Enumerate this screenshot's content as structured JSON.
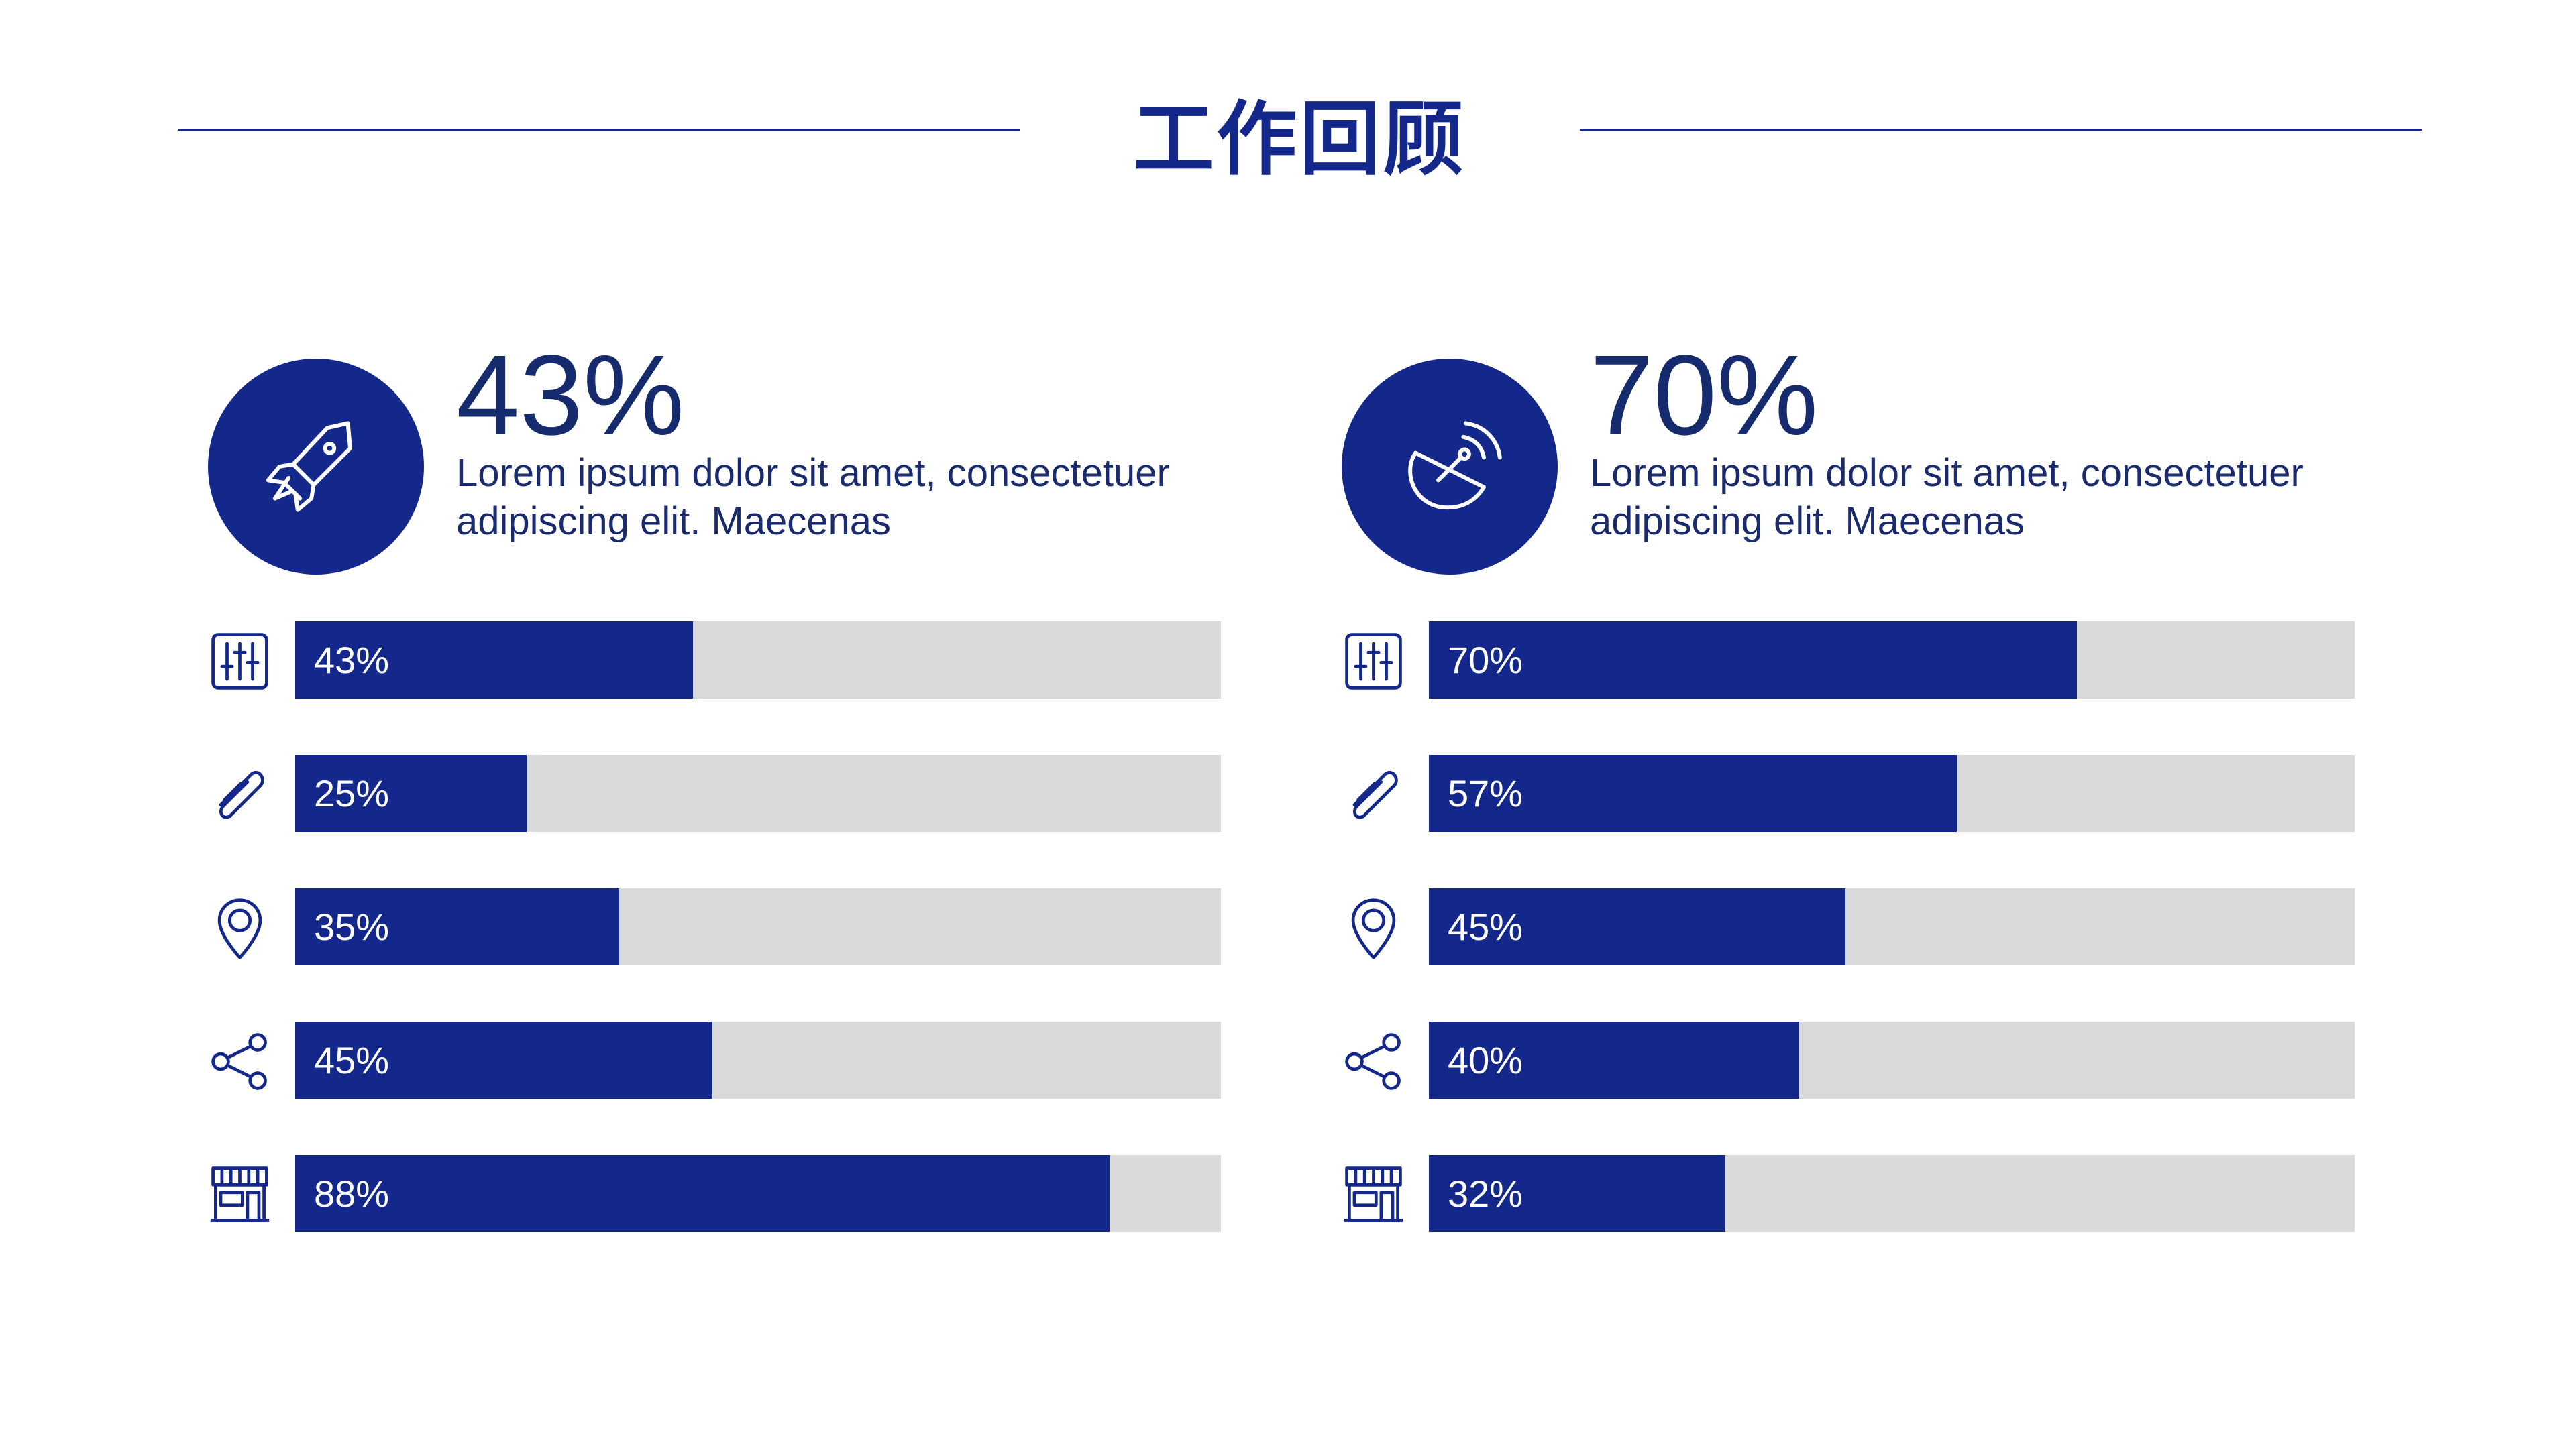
{
  "header": {
    "title": "工作回顾"
  },
  "panels": [
    {
      "icon": "rocket-icon",
      "big_value": "43%",
      "description_line1": "Lorem ipsum dolor sit amet, consectetuer",
      "description_line2": "adipiscing elit. Maecenas"
    },
    {
      "icon": "satellite-dish-icon",
      "big_value": "70%",
      "description_line1": "Lorem ipsum dolor sit amet, consectetuer",
      "description_line2": "adipiscing elit. Maecenas"
    }
  ],
  "colors": {
    "accent": "#14288c",
    "track": "#d9d9d9",
    "text_dark": "#162a6e"
  },
  "chart_data": [
    {
      "type": "bar",
      "orientation": "horizontal",
      "categories": [
        "sliders-icon",
        "paperclip-icon",
        "location-pin-icon",
        "share-icon",
        "storefront-icon"
      ],
      "values": [
        43,
        25,
        35,
        45,
        88
      ],
      "labels": [
        "43%",
        "25%",
        "35%",
        "45%",
        "88%"
      ],
      "xlim": [
        0,
        100
      ],
      "grid": false
    },
    {
      "type": "bar",
      "orientation": "horizontal",
      "categories": [
        "sliders-icon",
        "paperclip-icon",
        "location-pin-icon",
        "share-icon",
        "storefront-icon"
      ],
      "values": [
        70,
        57,
        45,
        40,
        32
      ],
      "labels": [
        "70%",
        "57%",
        "45%",
        "40%",
        "32%"
      ],
      "xlim": [
        0,
        100
      ],
      "grid": false
    }
  ]
}
